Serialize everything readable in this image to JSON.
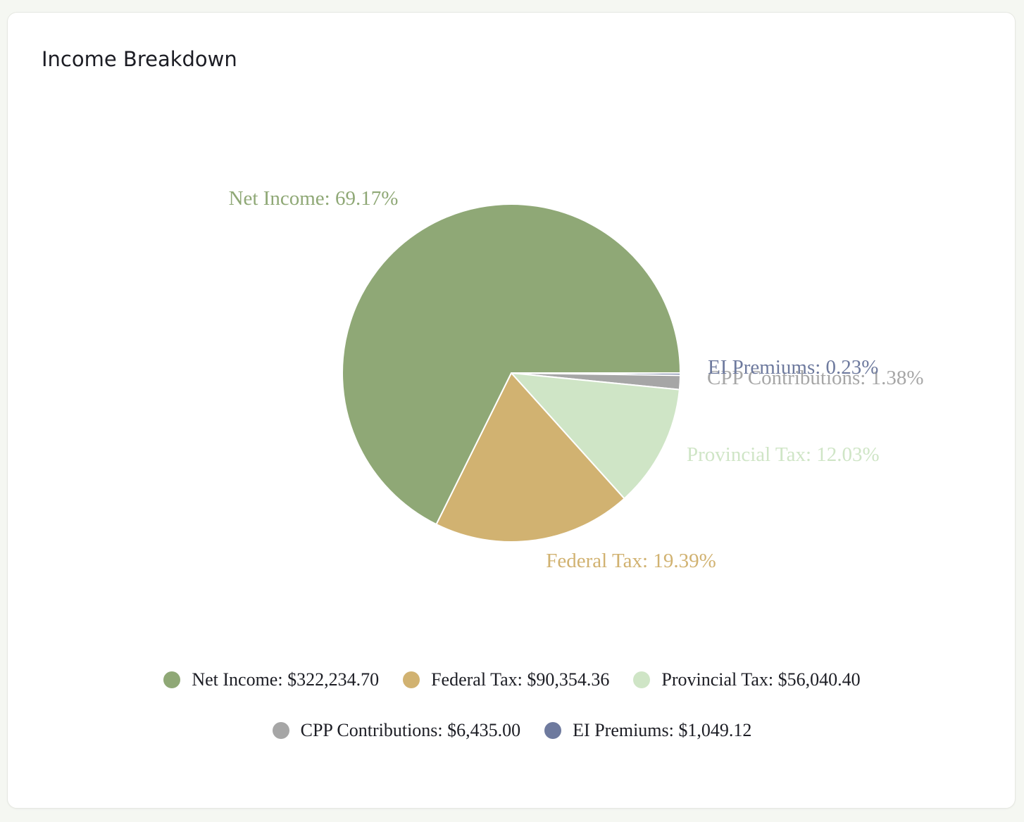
{
  "card": {
    "title": "Income Breakdown"
  },
  "chart_data": {
    "type": "pie",
    "title": "Income Breakdown",
    "slices": [
      {
        "name": "Net Income",
        "value": 322234.7,
        "percent": 69.17,
        "color": "#8fa876",
        "label": "Net Income: 69.17%",
        "legend": "Net Income: $322,234.70"
      },
      {
        "name": "Federal Tax",
        "value": 90354.36,
        "percent": 19.39,
        "color": "#d1b271",
        "label": "Federal Tax: 19.39%",
        "legend": "Federal Tax: $90,354.36"
      },
      {
        "name": "Provincial Tax",
        "value": 56040.4,
        "percent": 12.03,
        "color": "#cfe5c6",
        "label": "Provincial Tax: 12.03%",
        "legend": "Provincial Tax: $56,040.40"
      },
      {
        "name": "CPP Contributions",
        "value": 6435.0,
        "percent": 1.38,
        "color": "#a6a6a6",
        "label": "CPP Contributions: 1.38%",
        "legend": "CPP Contributions: $6,435.00"
      },
      {
        "name": "EI Premiums",
        "value": 1049.12,
        "percent": 0.23,
        "color": "#6e7a9e",
        "label": "EI Premiums: 0.23%",
        "legend": "EI Premiums: $1,049.12"
      }
    ],
    "legend_position": "bottom"
  }
}
